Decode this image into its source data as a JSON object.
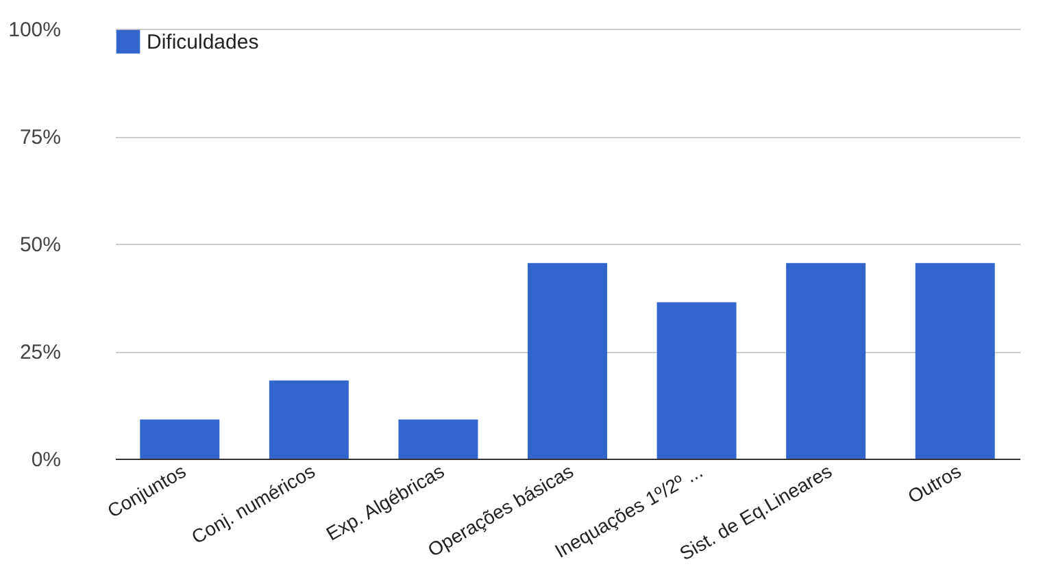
{
  "chart_data": {
    "type": "bar",
    "categories": [
      "Conjuntos",
      "Conj. numéricos",
      "Exp. Algébricas",
      "Operações básicas",
      "Inequações 1º/2º ...",
      "Sist. de Eq.Lineares",
      "Outros"
    ],
    "series": [
      {
        "name": "Dificuldades",
        "color": "#3366cc",
        "values": [
          9.1,
          18.2,
          9.1,
          45.5,
          36.4,
          45.5,
          45.5
        ]
      }
    ],
    "ylim": [
      0,
      100
    ],
    "yticks": [
      {
        "value": 0,
        "label": "0%"
      },
      {
        "value": 25,
        "label": "25%"
      },
      {
        "value": 50,
        "label": "50%"
      },
      {
        "value": 75,
        "label": "75%"
      },
      {
        "value": 100,
        "label": "100%"
      }
    ],
    "grid": "y",
    "legend": "top left"
  }
}
